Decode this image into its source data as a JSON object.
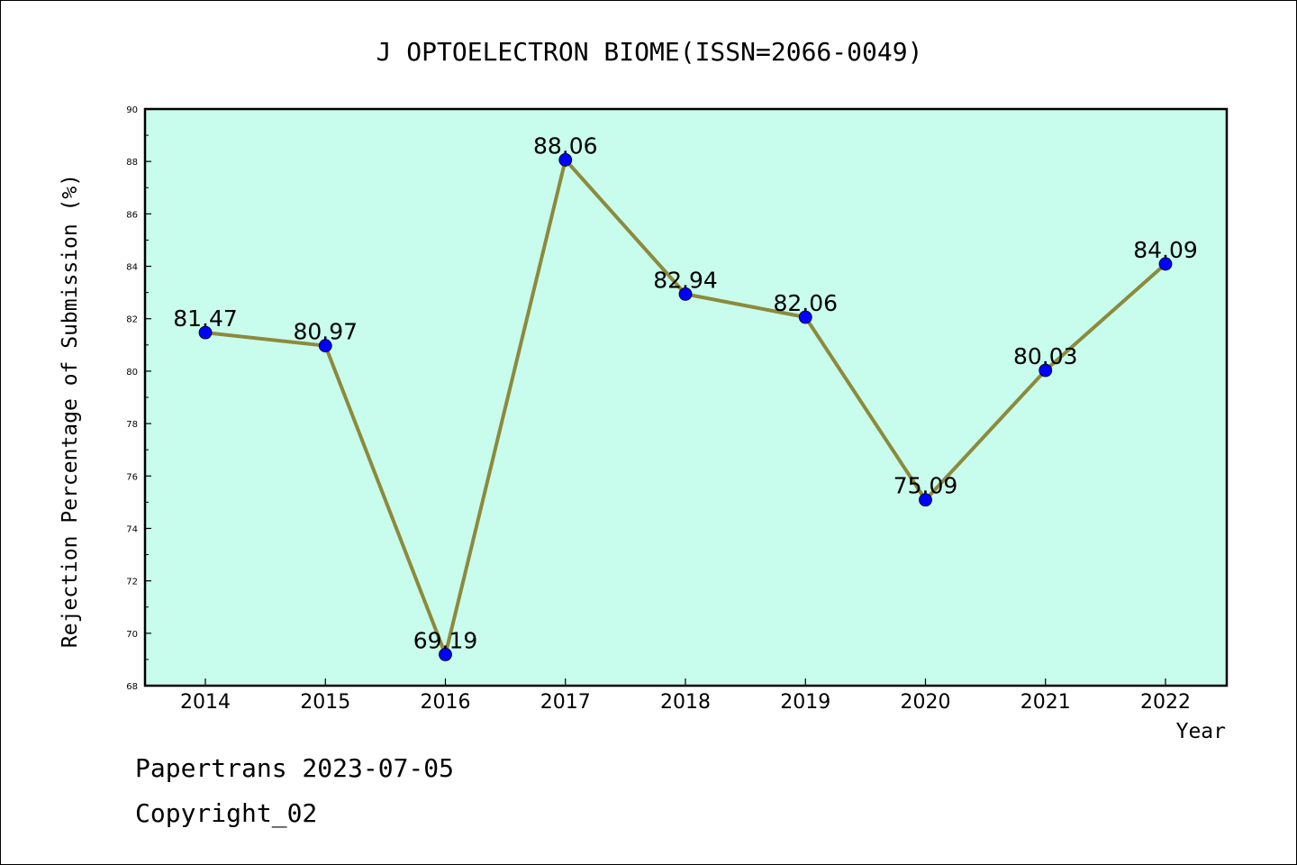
{
  "chart_data": {
    "type": "line",
    "title": "J OPTOELECTRON BIOME(ISSN=2066-0049)",
    "xlabel": "Year",
    "ylabel": "Rejection Percentage of Submission (%)",
    "categories": [
      "2014",
      "2015",
      "2016",
      "2017",
      "2018",
      "2019",
      "2020",
      "2021",
      "2022"
    ],
    "series": [
      {
        "values": [
          81.47,
          80.97,
          69.19,
          88.06,
          82.94,
          82.06,
          75.09,
          80.03,
          84.09
        ],
        "labels": [
          "81.47",
          "80.97",
          "69.19",
          "88.06",
          "82.94",
          "82.06",
          "75.09",
          "80.03",
          "84.09"
        ]
      }
    ],
    "ylim": [
      68,
      90
    ],
    "yticks": [
      "68",
      "70",
      "72",
      "74",
      "76",
      "78",
      "80",
      "82",
      "84",
      "86",
      "88",
      "90"
    ],
    "grid": false,
    "colors": {
      "plot_background": "#c8fcec",
      "line": "#8c8a3c",
      "marker": "#0000ff",
      "axes": "#000000"
    }
  },
  "footer": {
    "line1": "Papertrans 2023-07-05",
    "line2": "Copyright_02"
  }
}
